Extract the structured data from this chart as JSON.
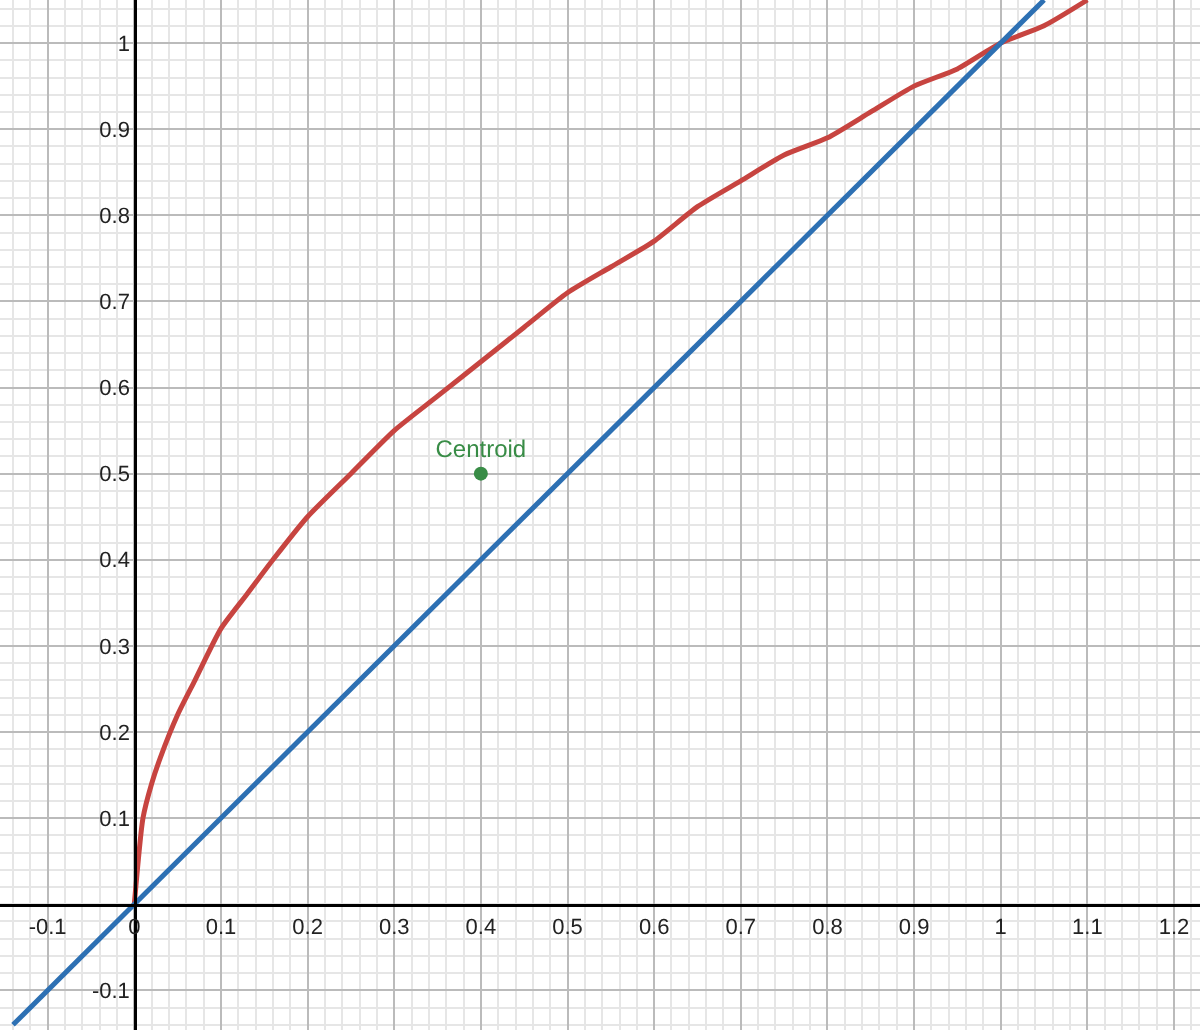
{
  "chart_data": {
    "type": "line",
    "xlim": [
      -0.155,
      1.23
    ],
    "ylim": [
      -0.146,
      1.05
    ],
    "xticks": [
      -0.1,
      0,
      0.1,
      0.2,
      0.3,
      0.4,
      0.5,
      0.6,
      0.7,
      0.8,
      0.9,
      1,
      1.1,
      1.2
    ],
    "yticks": [
      -0.1,
      0.1,
      0.2,
      0.3,
      0.4,
      0.5,
      0.6,
      0.7,
      0.8,
      0.9,
      1
    ],
    "grid": true,
    "series": [
      {
        "color": "#c74440",
        "marker": "none",
        "x": [
          0,
          0.01,
          0.02,
          0.03,
          0.05,
          0.07,
          0.1,
          0.13,
          0.16,
          0.2,
          0.25,
          0.3,
          0.35,
          0.4,
          0.45,
          0.5,
          0.55,
          0.6,
          0.65,
          0.7,
          0.75,
          0.8,
          0.85,
          0.9,
          0.95,
          1,
          1.05,
          1.1
        ],
        "values": [
          0,
          0.1,
          0.14,
          0.17,
          0.22,
          0.26,
          0.32,
          0.36,
          0.4,
          0.45,
          0.5,
          0.55,
          0.59,
          0.63,
          0.67,
          0.71,
          0.74,
          0.77,
          0.81,
          0.84,
          0.87,
          0.89,
          0.92,
          0.95,
          0.97,
          1,
          1.02,
          1.05
        ]
      },
      {
        "color": "#2d70b3",
        "marker": "none",
        "x": [
          -0.14,
          1.05
        ],
        "values": [
          -0.14,
          1.05
        ]
      },
      {
        "type": "scatter",
        "name": "Centroid",
        "color": "#388c46",
        "marker": "circle",
        "x": [
          0.4
        ],
        "values": [
          0.5
        ]
      }
    ]
  }
}
